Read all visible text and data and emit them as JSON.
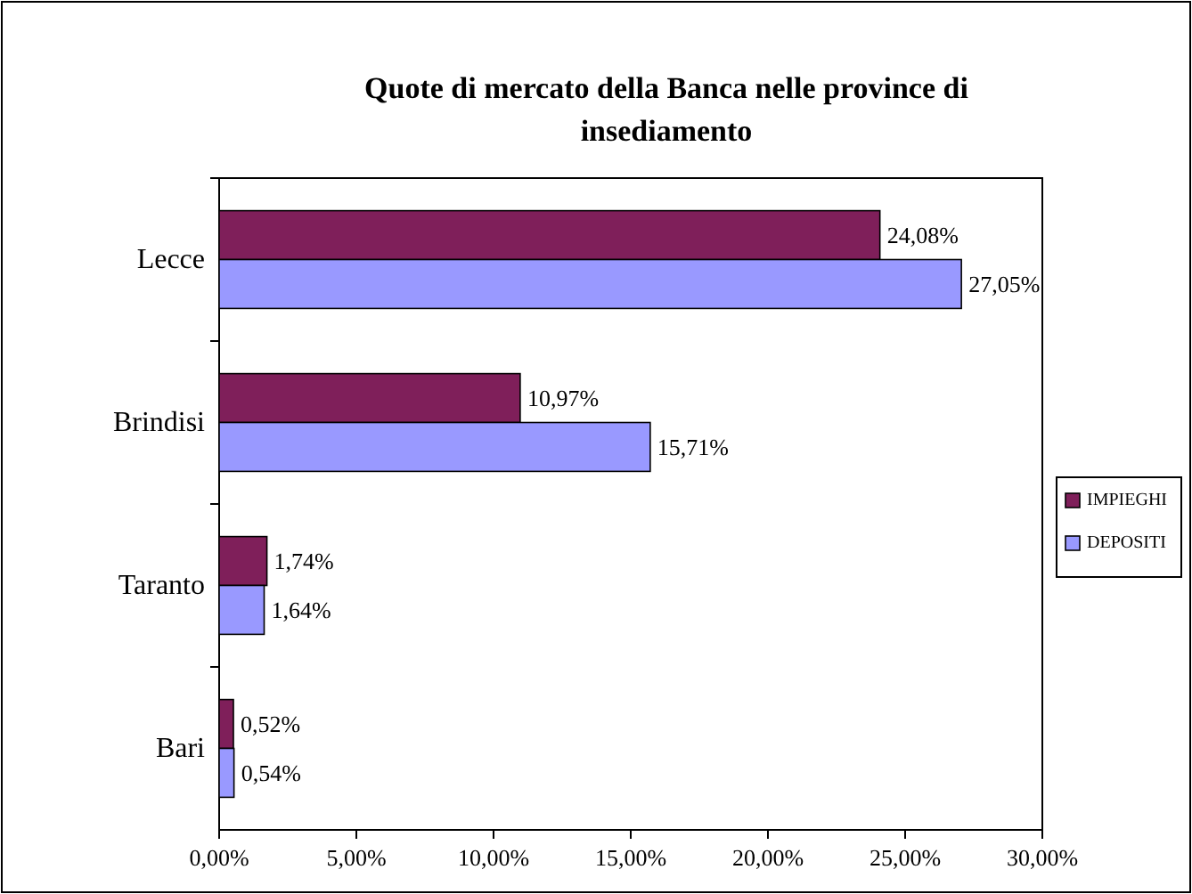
{
  "chart_data": {
    "type": "bar",
    "orientation": "horizontal",
    "title": "Quote di mercato della Banca nelle province di insediamento",
    "categories": [
      "Lecce",
      "Brindisi",
      "Taranto",
      "Bari"
    ],
    "series": [
      {
        "name": "IMPIEGHI",
        "color": "#7f1f5a",
        "values": [
          24.08,
          10.97,
          1.74,
          0.52
        ],
        "value_labels": [
          "24,08%",
          "10,97%",
          "1,74%",
          "0,52%"
        ]
      },
      {
        "name": "DEPOSITI",
        "color": "#9999ff",
        "values": [
          27.05,
          15.71,
          1.64,
          0.54
        ],
        "value_labels": [
          "27,05%",
          "15,71%",
          "1,64%",
          "0,54%"
        ]
      }
    ],
    "xlim": [
      0,
      30
    ],
    "xticks": [
      {
        "value": 0,
        "label": "0,00%"
      },
      {
        "value": 5,
        "label": "5,00%"
      },
      {
        "value": 10,
        "label": "10,00%"
      },
      {
        "value": 15,
        "label": "15,00%"
      },
      {
        "value": 20,
        "label": "20,00%"
      },
      {
        "value": 25,
        "label": "25,00%"
      },
      {
        "value": 30,
        "label": "30,00%"
      }
    ],
    "grid": false,
    "legend": "right"
  }
}
